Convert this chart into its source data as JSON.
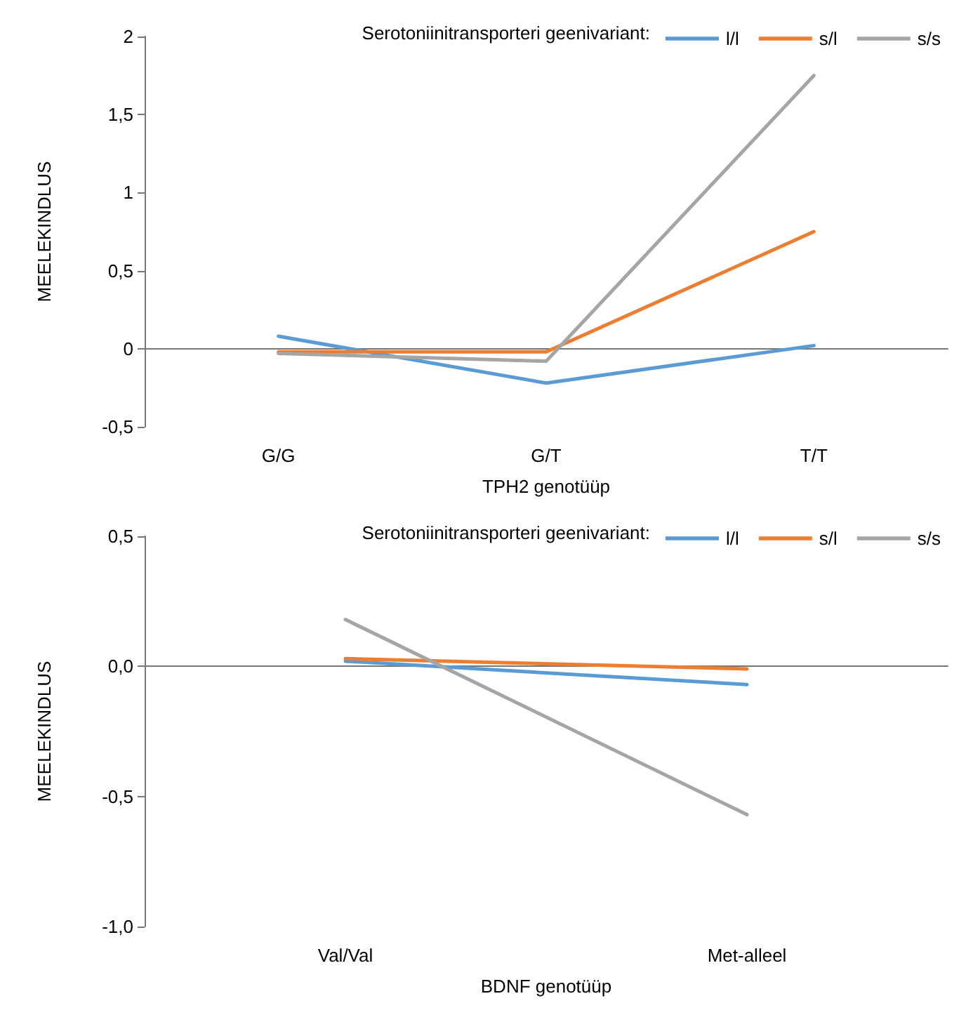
{
  "chart_data": [
    {
      "type": "line",
      "xlabel": "TPH2 genotüüp",
      "ylabel": "MEELEKINDLUS",
      "legend_title": "Serotoniinitransporteri geenivariant:",
      "legend": "top right",
      "marker": "none",
      "line_style": "solid",
      "categories": [
        "G/G",
        "G/T",
        "T/T"
      ],
      "ylim": [
        -0.5,
        2
      ],
      "yticks": [
        {
          "value": -0.5,
          "label": "-0,5"
        },
        0,
        {
          "value": 0.5,
          "label": "0,5"
        },
        1,
        {
          "value": 1.5,
          "label": "1,5"
        },
        2
      ],
      "series": [
        {
          "name": "l/l",
          "color": "#5b9bd5",
          "values": [
            0.08,
            -0.22,
            0.02
          ]
        },
        {
          "name": "s/l",
          "color": "#ed7d31",
          "values": [
            -0.02,
            -0.02,
            0.75
          ]
        },
        {
          "name": "s/s",
          "color": "#a5a5a5",
          "values": [
            -0.03,
            -0.08,
            1.75
          ]
        }
      ]
    },
    {
      "type": "line",
      "xlabel": "BDNF genotüüp",
      "ylabel": "MEELEKINDLUS",
      "legend_title": "Serotoniinitransporteri geenivariant:",
      "legend": "top right",
      "marker": "none",
      "line_style": "solid",
      "categories": [
        "Val/Val",
        "Met-alleel"
      ],
      "ylim": [
        -1,
        0.5
      ],
      "yticks": [
        {
          "value": -1,
          "label": "-1,0"
        },
        {
          "value": -0.5,
          "label": "-0,5"
        },
        {
          "value": 0,
          "label": "0,0"
        },
        {
          "value": 0.5,
          "label": "0,5"
        }
      ],
      "series": [
        {
          "name": "l/l",
          "color": "#5b9bd5",
          "values": [
            0.02,
            -0.07
          ]
        },
        {
          "name": "s/l",
          "color": "#ed7d31",
          "values": [
            0.03,
            -0.01
          ]
        },
        {
          "name": "s/s",
          "color": "#a5a5a5",
          "values": [
            0.18,
            -0.57
          ]
        }
      ]
    }
  ]
}
